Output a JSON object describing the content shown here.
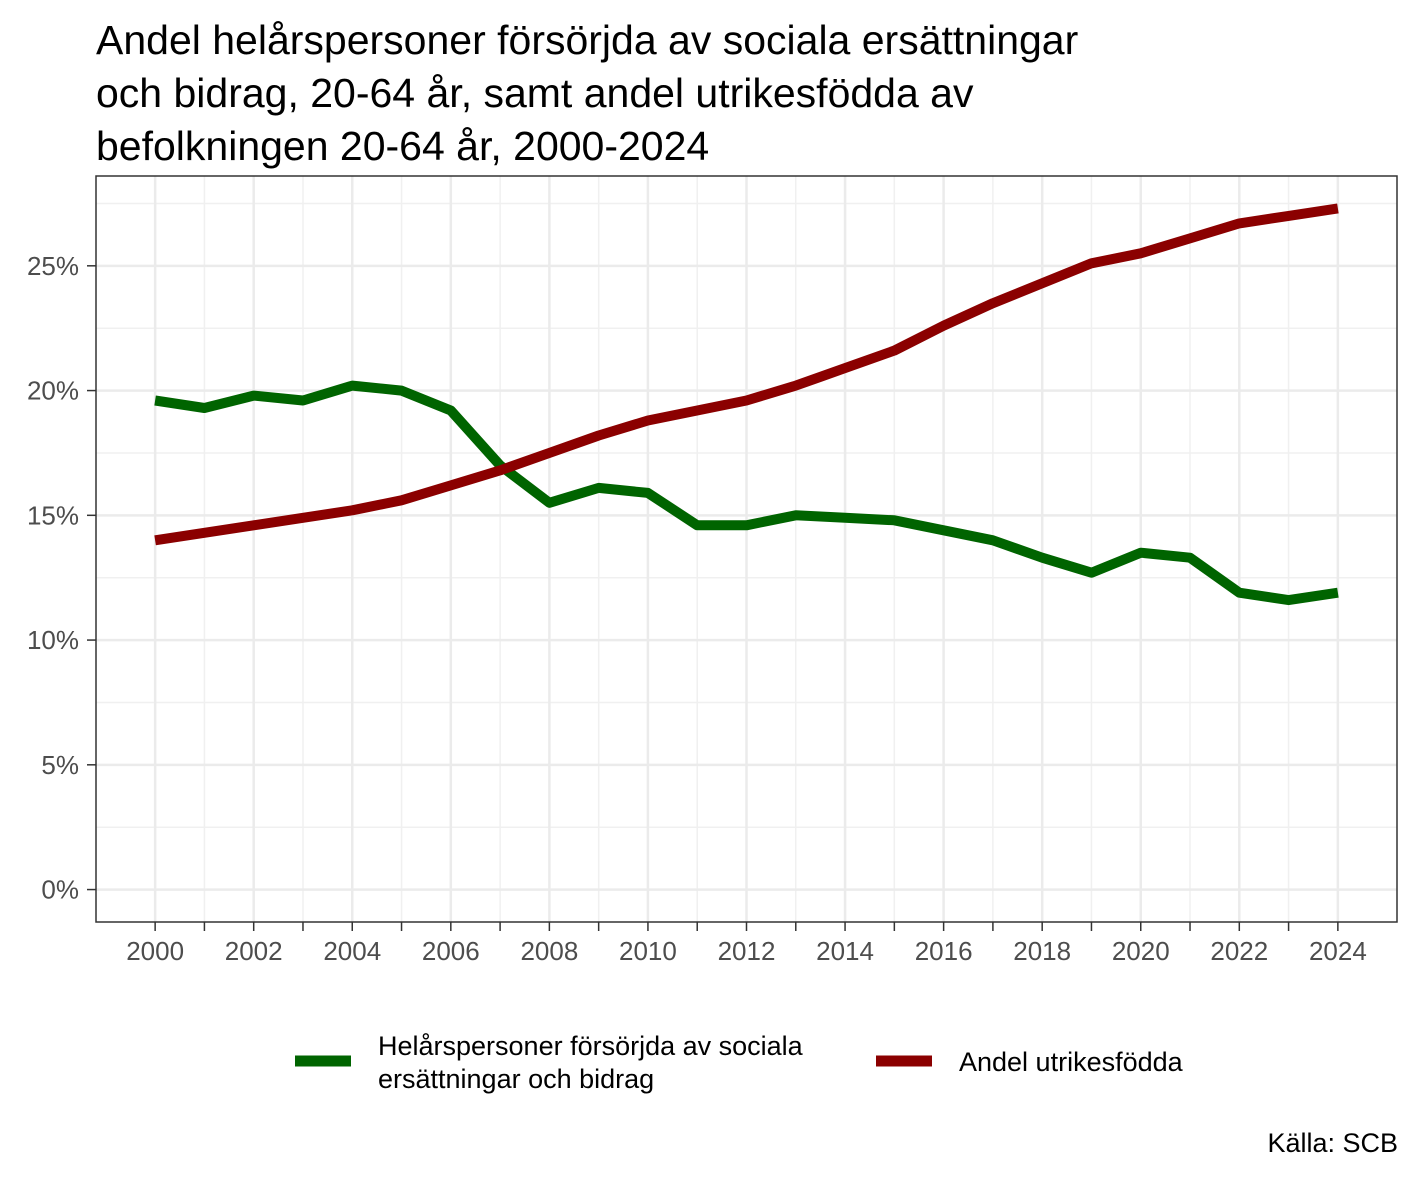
{
  "chart_data": {
    "type": "line",
    "title_lines": [
      "Andel helårspersoner försörjda av sociala ersättningar",
      "och bidrag, 20-64 år, samt andel utrikesfödda av",
      "befolkningen 20-64 år, 2000-2024"
    ],
    "xlabel": "",
    "ylabel": "",
    "x": [
      2000,
      2001,
      2002,
      2003,
      2004,
      2005,
      2006,
      2007,
      2008,
      2009,
      2010,
      2011,
      2012,
      2013,
      2014,
      2015,
      2016,
      2017,
      2018,
      2019,
      2020,
      2021,
      2022,
      2023,
      2024
    ],
    "xlim": [
      1998.8,
      2025.2
    ],
    "ylim": [
      -1.3,
      28.6
    ],
    "x_ticks": [
      "2000",
      "2002",
      "2004",
      "2006",
      "2008",
      "2010",
      "2012",
      "2014",
      "2016",
      "2018",
      "2020",
      "2022",
      "2024"
    ],
    "y_ticks": [
      "0%",
      "5%",
      "10%",
      "15%",
      "20%",
      "25%"
    ],
    "grid": true,
    "legend_position": "bottom",
    "series": [
      {
        "name_lines": [
          "Helårspersoner försörjda av sociala",
          "ersättningar och bidrag"
        ],
        "color": "#006400",
        "values": [
          19.6,
          19.3,
          19.8,
          19.6,
          20.2,
          20.0,
          19.2,
          17.0,
          15.5,
          16.1,
          15.9,
          14.6,
          14.6,
          15.0,
          14.9,
          14.8,
          14.4,
          14.0,
          13.3,
          12.7,
          13.5,
          13.3,
          11.9,
          11.6,
          11.9
        ]
      },
      {
        "name_lines": [
          "Andel utrikesfödda"
        ],
        "color": "#8B0000",
        "values": [
          14.0,
          14.3,
          14.6,
          14.9,
          15.2,
          15.6,
          16.2,
          16.8,
          17.5,
          18.2,
          18.8,
          19.2,
          19.6,
          20.2,
          20.9,
          21.6,
          22.6,
          23.5,
          24.3,
          25.1,
          25.5,
          26.1,
          26.7,
          27.0,
          27.3
        ]
      }
    ],
    "source": "Källa: SCB"
  }
}
